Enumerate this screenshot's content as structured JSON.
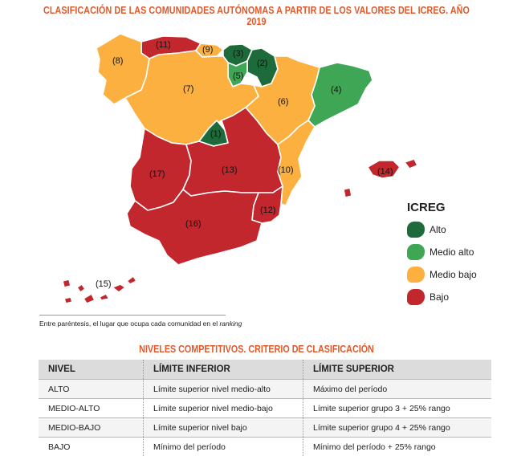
{
  "title": "CLASIFICACIÓN DE LAS COMUNIDADES AUTÓNOMAS A PARTIR DE LOS VALORES DEL ICREG. AÑO 2019",
  "colors": {
    "alto": "#1d6b3a",
    "medio_alto": "#3fa655",
    "medio_bajo": "#fbb040",
    "bajo": "#c1272d"
  },
  "map": {
    "regions": [
      {
        "label": "(11)",
        "level": "bajo"
      },
      {
        "label": "(9)",
        "level": "medio_bajo"
      },
      {
        "label": "(3)",
        "level": "alto"
      },
      {
        "label": "(2)",
        "level": "alto"
      },
      {
        "label": "(8)",
        "level": "medio_bajo"
      },
      {
        "label": "(5)",
        "level": "medio_alto"
      },
      {
        "label": "(7)",
        "level": "medio_bajo"
      },
      {
        "label": "(4)",
        "level": "medio_alto"
      },
      {
        "label": "(6)",
        "level": "medio_bajo"
      },
      {
        "label": "(1)",
        "level": "alto"
      },
      {
        "label": "(17)",
        "level": "bajo"
      },
      {
        "label": "(13)",
        "level": "bajo"
      },
      {
        "label": "(10)",
        "level": "medio_bajo"
      },
      {
        "label": "(14)",
        "level": "bajo"
      },
      {
        "label": "(12)",
        "level": "bajo"
      },
      {
        "label": "(16)",
        "level": "bajo"
      },
      {
        "label": "(15)",
        "level": "bajo"
      }
    ]
  },
  "legend": {
    "title": "ICREG",
    "items": [
      {
        "label": "Alto",
        "level": "alto"
      },
      {
        "label": "Medio alto",
        "level": "medio_alto"
      },
      {
        "label": "Medio bajo",
        "level": "medio_bajo"
      },
      {
        "label": "Bajo",
        "level": "bajo"
      }
    ]
  },
  "note": {
    "text": "Entre paréntesis, el lugar que ocupa cada comunidad en el ",
    "emph": "ranking"
  },
  "table": {
    "title": "NIVELES COMPETITIVOS. CRITERIO DE CLASIFICACIÓN",
    "headers": [
      "NIVEL",
      "LÍMITE INFERIOR",
      "LÍMITE SUPERIOR"
    ],
    "rows": [
      [
        "ALTO",
        "Límite superior nivel medio-alto",
        "Máximo del período"
      ],
      [
        "MEDIO-ALTO",
        "Límite superior nivel medio-bajo",
        "Límite superior grupo 3 + 25% rango"
      ],
      [
        "MEDIO-BAJO",
        "Límite superior nivel bajo",
        "Límite superior grupo 4 + 25% rango"
      ],
      [
        "BAJO",
        "Mínimo del período",
        "Mínimo del período + 25% rango"
      ]
    ]
  }
}
